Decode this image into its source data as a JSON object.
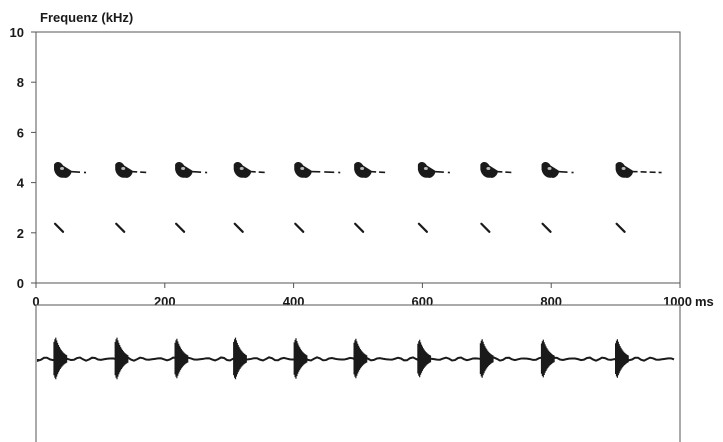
{
  "chart_data": [
    {
      "type": "scatter",
      "title": "",
      "ylabel": "Frequenz (kHz)",
      "xlabel": "",
      "x_unit": "ms",
      "xlim": [
        0,
        1000
      ],
      "ylim": [
        0,
        10
      ],
      "x_ticks": [
        "0",
        "200",
        "400",
        "600",
        "800",
        "1000"
      ],
      "y_ticks": [
        "0",
        "2",
        "4",
        "6",
        "8",
        "10"
      ],
      "grid": false,
      "legend": "none",
      "colors": {
        "ink": "#1a1a1a",
        "frame": "#555555",
        "background": "#ffffff"
      },
      "call_onsets_ms": [
        28,
        123,
        216,
        307,
        401,
        494,
        593,
        690,
        785,
        900
      ],
      "fundamental_band_khz": [
        4.2,
        4.8
      ],
      "harmonic_band_khz": [
        2.0,
        2.4
      ]
    },
    {
      "type": "area",
      "title": "",
      "xlabel": "",
      "ylabel": "",
      "xlim": [
        0,
        1000
      ],
      "ylim": [
        -1,
        1
      ],
      "grid": false,
      "burst_onsets_ms": [
        28,
        123,
        216,
        307,
        401,
        494,
        593,
        690,
        785,
        900
      ],
      "burst_peak_amplitude": [
        0.95,
        0.95,
        0.9,
        0.95,
        0.92,
        0.9,
        0.85,
        0.88,
        0.86,
        0.88
      ]
    }
  ]
}
